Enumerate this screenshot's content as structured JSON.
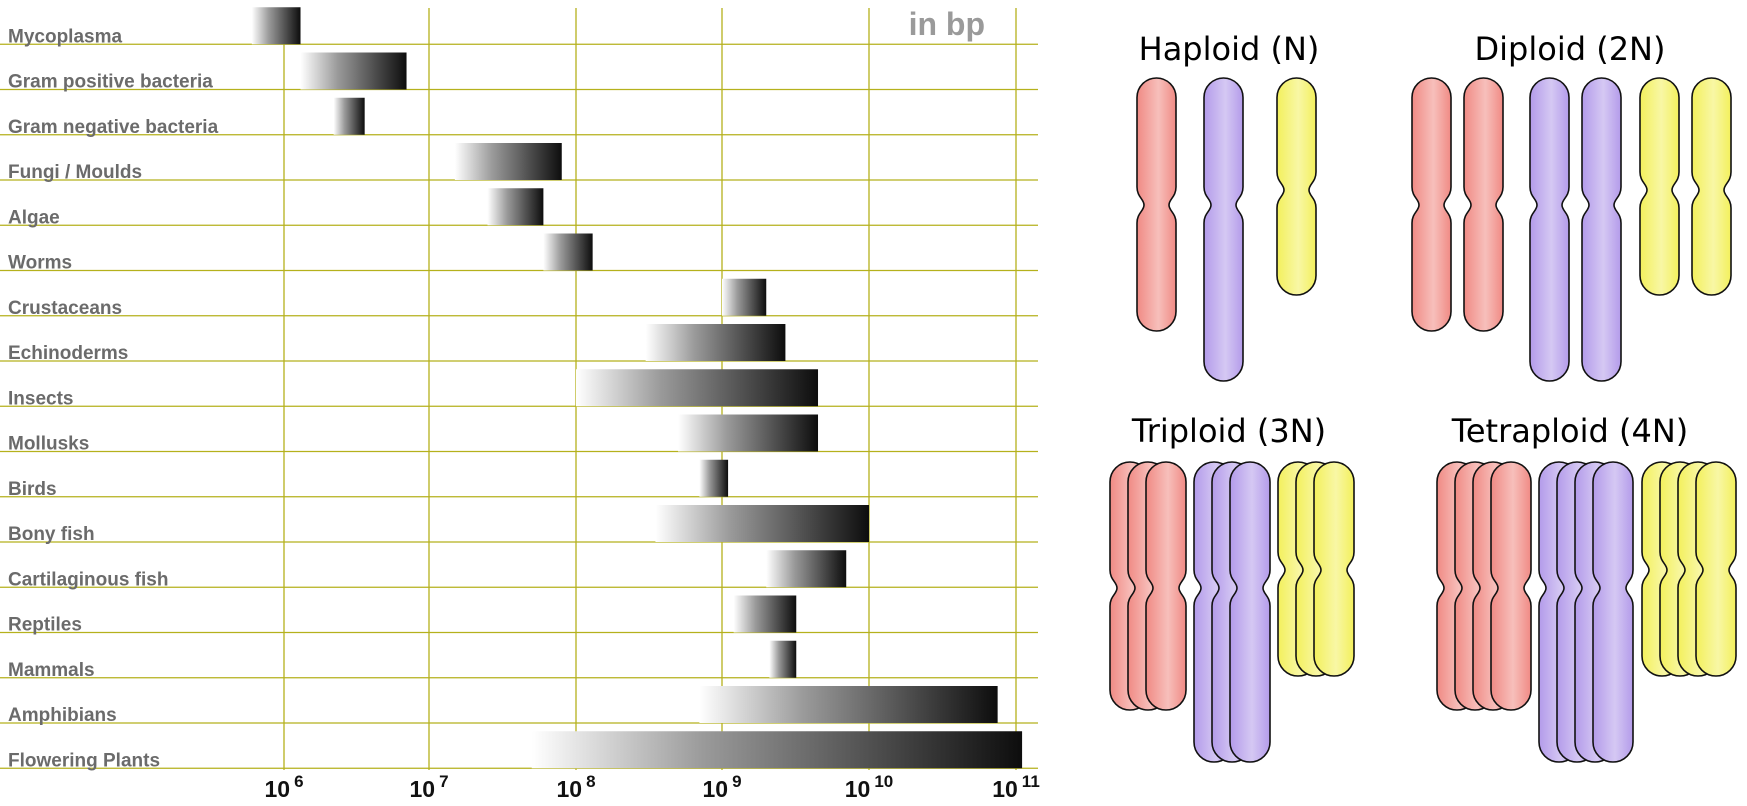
{
  "genome_chart": {
    "unit_label": "in bp",
    "tick_labels": [
      {
        "base": "10",
        "exp": "6"
      },
      {
        "base": "10",
        "exp": "7"
      },
      {
        "base": "10",
        "exp": "8"
      },
      {
        "base": "10",
        "exp": "9"
      },
      {
        "base": "10",
        "exp": "10"
      },
      {
        "base": "10",
        "exp": "11"
      }
    ]
  },
  "chart_data": {
    "type": "bar",
    "subtype": "horizontal-range",
    "title": "",
    "xlabel": "in bp",
    "x_scale": "log10",
    "xlim": [
      300000,
      100000000000
    ],
    "grid": true,
    "categories": [
      "Mycoplasma",
      "Gram positive bacteria",
      "Gram negative bacteria",
      "Fungi / Moulds",
      "Algae",
      "Worms",
      "Crustaceans",
      "Echinoderms",
      "Insects",
      "Mollusks",
      "Birds",
      "Bony fish",
      "Cartilaginous fish",
      "Reptiles",
      "Mammals",
      "Amphibians",
      "Flowering Plants"
    ],
    "ranges": [
      [
        600000,
        1300000
      ],
      [
        1300000,
        7000000
      ],
      [
        2200000,
        3600000
      ],
      [
        15000000,
        80000000
      ],
      [
        25000000,
        60000000
      ],
      [
        60000000,
        130000000
      ],
      [
        1000000000,
        2000000000
      ],
      [
        300000000,
        2700000000
      ],
      [
        100000000,
        4500000000
      ],
      [
        500000000,
        4500000000
      ],
      [
        700000000,
        1100000000
      ],
      [
        350000000,
        10000000000
      ],
      [
        2000000000,
        7000000000
      ],
      [
        1200000000,
        3200000000
      ],
      [
        2100000000,
        3200000000
      ],
      [
        700000000,
        75000000000
      ],
      [
        50000000,
        110000000000
      ]
    ]
  },
  "ploidy": {
    "panels": [
      {
        "title": "Haploid (N)",
        "copies": 1
      },
      {
        "title": "Diploid (2N)",
        "copies": 2
      },
      {
        "title": "Triploid (3N)",
        "copies": 3
      },
      {
        "title": "Tetraploid (4N)",
        "copies": 4
      }
    ],
    "colors": {
      "red": "#f08a84",
      "purple": "#b39bea",
      "yellow": "#f3f05c"
    }
  },
  "colors": {
    "grid": "#b5b11c",
    "label": "#6b6b6b",
    "unit": "#9a9a9a",
    "bar_dark": "#0d0d0d"
  }
}
